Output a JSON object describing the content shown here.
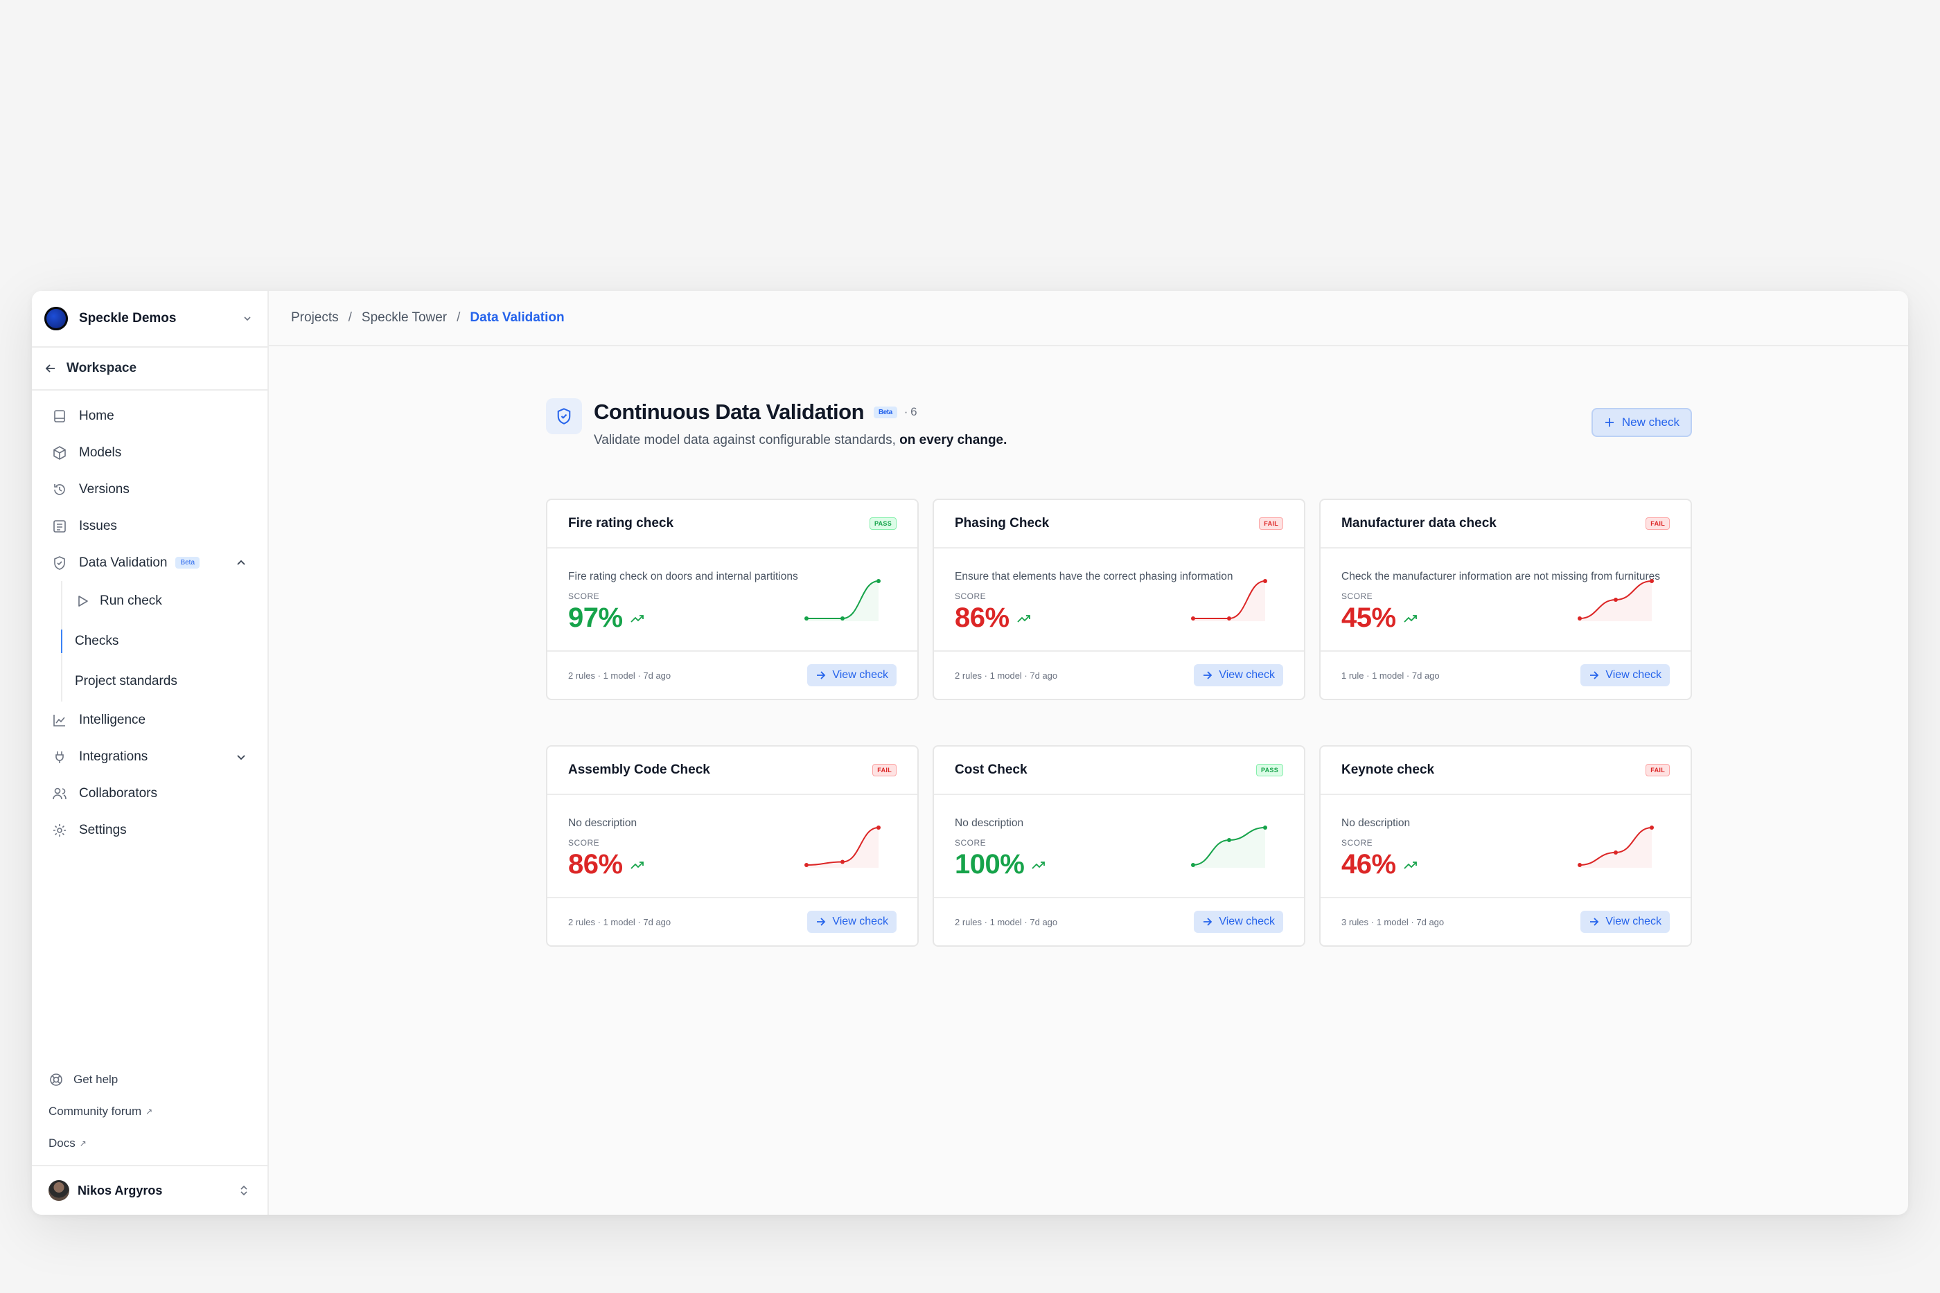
{
  "workspace": {
    "name": "Speckle Demos"
  },
  "back": {
    "label": "Workspace"
  },
  "nav": {
    "home": "Home",
    "models": "Models",
    "versions": "Versions",
    "issues": "Issues",
    "data_validation": "Data Validation",
    "data_validation_badge": "Beta",
    "sub": {
      "run_check": "Run check",
      "checks": "Checks",
      "project_standards": "Project standards"
    },
    "intelligence": "Intelligence",
    "integrations": "Integrations",
    "collaborators": "Collaborators",
    "settings": "Settings"
  },
  "footer": {
    "help": "Get help",
    "forum": "Community forum",
    "docs": "Docs",
    "user": "Nikos Argyros"
  },
  "breadcrumb": {
    "projects": "Projects",
    "project": "Speckle Tower",
    "current": "Data Validation",
    "sep": "/"
  },
  "header": {
    "title": "Continuous Data Validation",
    "badge": "Beta",
    "count": "· 6",
    "subtitle": "Validate model data against configurable standards,",
    "subtitle_bold": "on every change.",
    "new_check": "New check"
  },
  "colors": {
    "pass": "#16a34a",
    "fail": "#dc2626",
    "accent": "#2563eb"
  },
  "cards": [
    {
      "title": "Fire rating check",
      "status": "PASS",
      "description": "Fire rating check on doors and internal partitions",
      "score_label": "SCORE",
      "score": "97%",
      "meta": "2 rules · 1 model · 7d ago",
      "action": "View check",
      "trend": [
        90,
        90,
        97
      ]
    },
    {
      "title": "Phasing Check",
      "status": "FAIL",
      "description": "Ensure that elements have the correct phasing information",
      "score_label": "SCORE",
      "score": "86%",
      "meta": "2 rules · 1 model · 7d ago",
      "action": "View check",
      "trend": [
        80,
        80,
        86
      ]
    },
    {
      "title": "Manufacturer data check",
      "status": "FAIL",
      "description": "Check the manufacturer information are not missing from furnitures",
      "score_label": "SCORE",
      "score": "45%",
      "meta": "1 rule · 1 model · 7d ago",
      "action": "View check",
      "trend": [
        41,
        43,
        45
      ]
    },
    {
      "title": "Assembly Code Check",
      "status": "FAIL",
      "description": "No description",
      "score_label": "SCORE",
      "score": "86%",
      "meta": "2 rules · 1 model · 7d ago",
      "action": "View check",
      "trend": [
        80,
        80.5,
        86
      ]
    },
    {
      "title": "Cost Check",
      "status": "PASS",
      "description": "No description",
      "score_label": "SCORE",
      "score": "100%",
      "meta": "2 rules · 1 model · 7d ago",
      "action": "View check",
      "trend": [
        88,
        96,
        100
      ]
    },
    {
      "title": "Keynote check",
      "status": "FAIL",
      "description": "No description",
      "score_label": "SCORE",
      "score": "46%",
      "meta": "3 rules · 1 model · 7d ago",
      "action": "View check",
      "trend": [
        44.5,
        45,
        46
      ]
    }
  ]
}
